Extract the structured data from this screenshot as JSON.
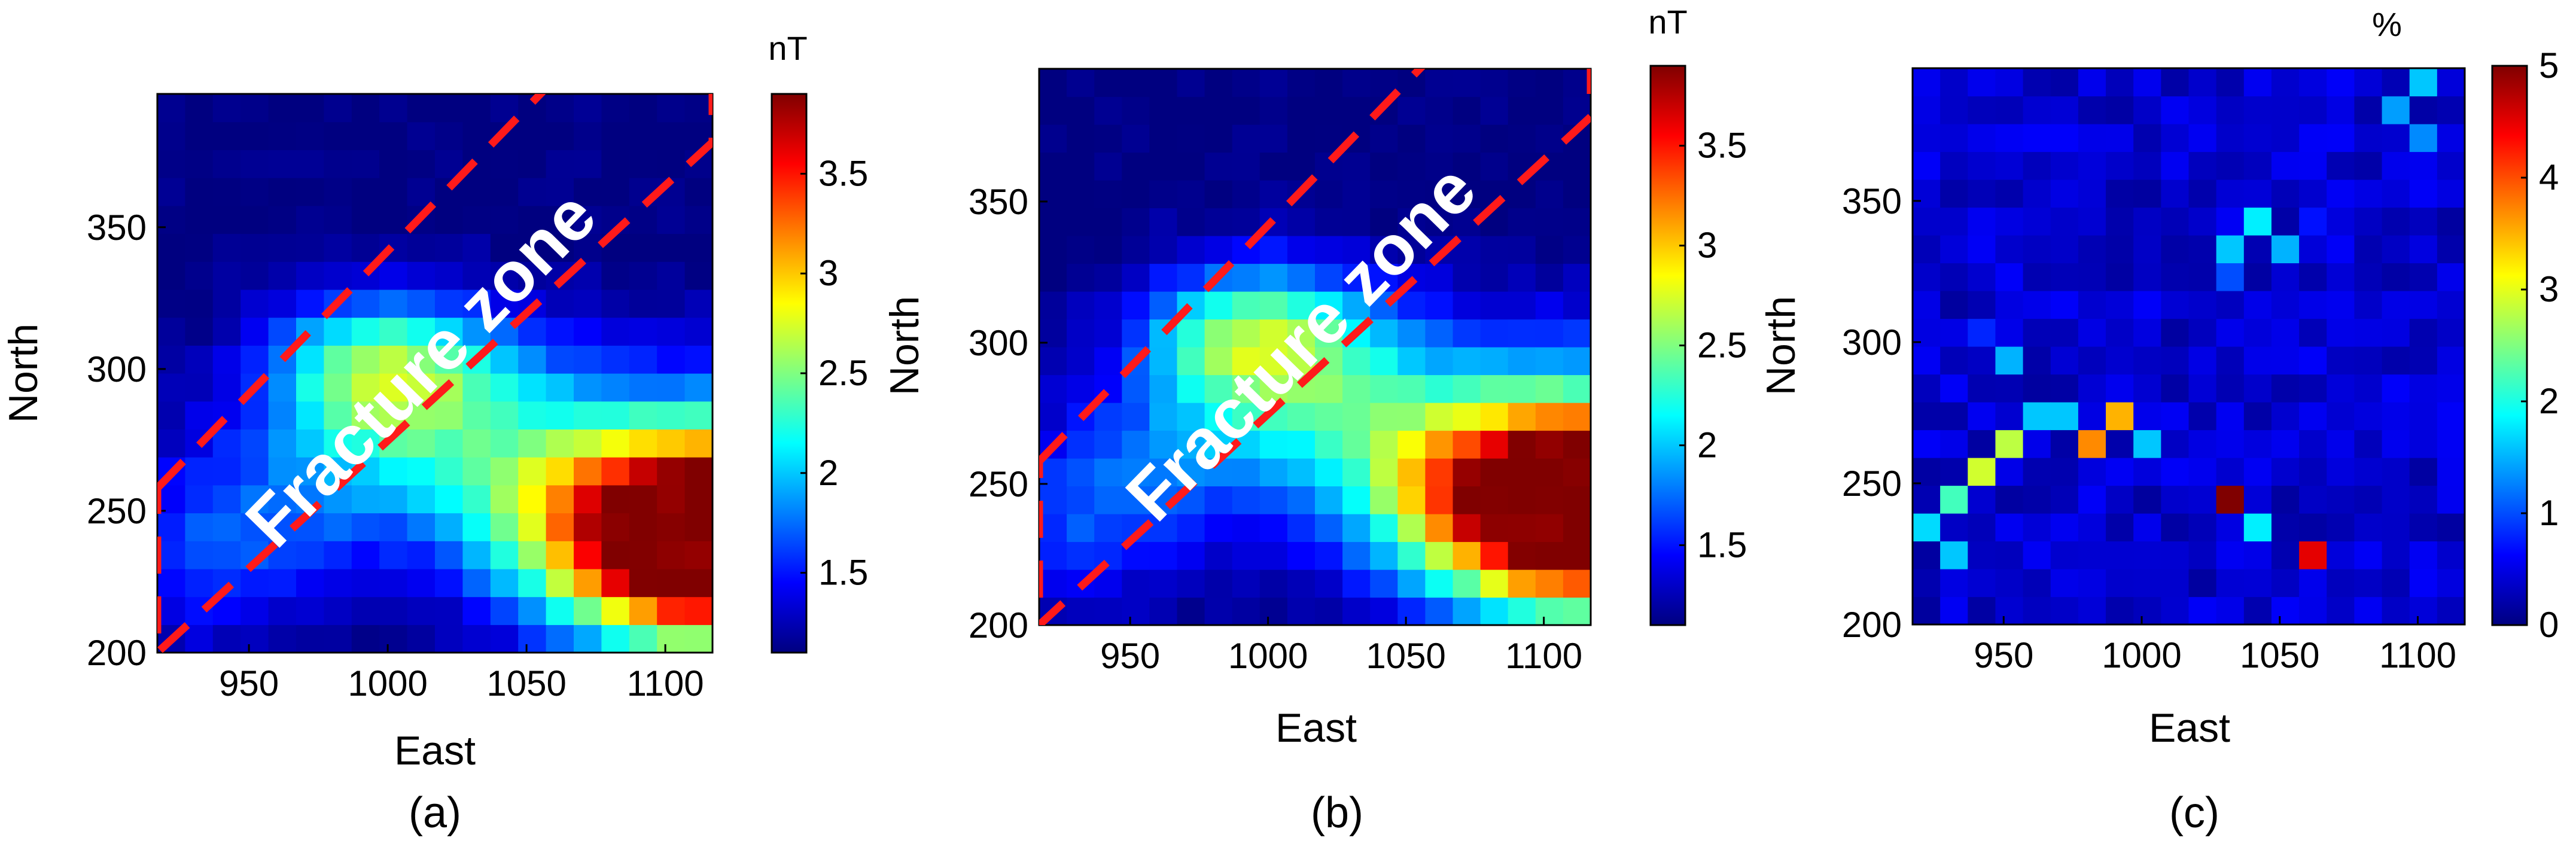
{
  "chart_data": [
    {
      "type": "heatmap",
      "panel": "(a)",
      "title": "",
      "xlabel": "East",
      "ylabel": "North",
      "xlim": [
        917,
        1117
      ],
      "ylim": [
        200,
        397
      ],
      "xticks": [
        950,
        1000,
        1050,
        1100
      ],
      "yticks": [
        200,
        250,
        300,
        350
      ],
      "colorbar": {
        "label": "nT",
        "range": [
          1.1,
          3.9
        ],
        "ticks": [
          1.5,
          2,
          2.5,
          3,
          3.5
        ]
      },
      "annotation": "Fracture zone",
      "grid": {
        "nx": 20,
        "ny": 20
      }
    },
    {
      "type": "heatmap",
      "panel": "(b)",
      "title": "",
      "xlabel": "East",
      "ylabel": "North",
      "xlim": [
        917,
        1117
      ],
      "ylim": [
        200,
        397
      ],
      "xticks": [
        950,
        1000,
        1050,
        1100
      ],
      "yticks": [
        200,
        250,
        300,
        350
      ],
      "colorbar": {
        "label": "nT",
        "range": [
          1.1,
          3.9
        ],
        "ticks": [
          1.5,
          2,
          2.5,
          3,
          3.5
        ]
      },
      "annotation": "Fracture zone",
      "grid": {
        "nx": 20,
        "ny": 20
      }
    },
    {
      "type": "heatmap",
      "panel": "(c)",
      "title": "",
      "xlabel": "East",
      "ylabel": "North",
      "xlim": [
        917,
        1117
      ],
      "ylim": [
        200,
        397
      ],
      "xticks": [
        950,
        1000,
        1050,
        1100
      ],
      "yticks": [
        200,
        250,
        300,
        350
      ],
      "colorbar": {
        "label": "%",
        "range": [
          0,
          5
        ],
        "ticks": [
          0,
          1,
          2,
          3,
          4,
          5
        ]
      },
      "grid": {
        "nx": 20,
        "ny": 20
      },
      "hotspots": [
        {
          "east": 1035,
          "north": 245,
          "value": 5.0
        },
        {
          "east": 1065,
          "north": 225,
          "value": 4.5
        },
        {
          "east": 985,
          "north": 265,
          "value": 3.7
        },
        {
          "east": 995,
          "north": 275,
          "value": 3.5
        },
        {
          "east": 955,
          "north": 265,
          "value": 2.8
        },
        {
          "east": 945,
          "north": 255,
          "value": 2.9
        },
        {
          "east": 935,
          "north": 245,
          "value": 2.2
        },
        {
          "east": 925,
          "north": 235,
          "value": 1.7
        },
        {
          "east": 935,
          "north": 225,
          "value": 1.6
        },
        {
          "east": 1045,
          "north": 235,
          "value": 1.8
        },
        {
          "east": 1045,
          "north": 345,
          "value": 1.8
        },
        {
          "east": 1035,
          "north": 335,
          "value": 1.6
        },
        {
          "east": 1055,
          "north": 335,
          "value": 1.5
        },
        {
          "east": 965,
          "north": 275,
          "value": 1.6
        },
        {
          "east": 975,
          "north": 275,
          "value": 1.6
        },
        {
          "east": 1005,
          "north": 265,
          "value": 1.6
        },
        {
          "east": 955,
          "north": 295,
          "value": 1.5
        },
        {
          "east": 1095,
          "north": 385,
          "value": 1.4
        },
        {
          "east": 1105,
          "north": 395,
          "value": 1.6
        },
        {
          "east": 1105,
          "north": 375,
          "value": 1.3
        },
        {
          "east": 945,
          "north": 305,
          "value": 0.8
        },
        {
          "east": 1035,
          "north": 325,
          "value": 1.0
        },
        {
          "east": 1065,
          "north": 345,
          "value": 0.7
        }
      ]
    }
  ]
}
